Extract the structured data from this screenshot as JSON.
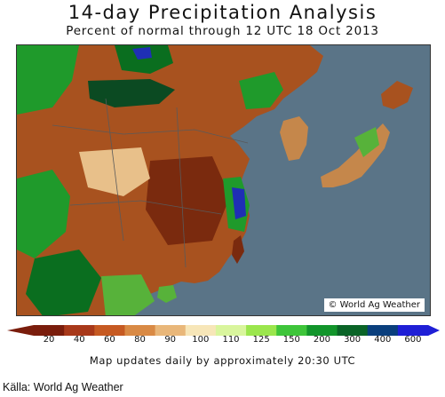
{
  "header": {
    "title": "14-day Precipitation Analysis",
    "subtitle": "Percent of normal through 12 UTC 18 Oct 2013"
  },
  "map": {
    "credit": "© World Ag Weather",
    "colors": {
      "ocean": "#5a7487",
      "dry_dark": "#7a2a0e",
      "dry": "#a8521f",
      "below": "#c5874b",
      "near": "#e8c08a",
      "normal": "#f3dcb0",
      "wet_light": "#57b23a",
      "wet": "#1f9a2b",
      "wet_dark": "#0a6e1f",
      "very_wet": "#0b4a22",
      "extreme": "#1f2fb5",
      "borders": "#5a5a5a"
    }
  },
  "legend": {
    "labels": [
      "20",
      "40",
      "60",
      "80",
      "90",
      "100",
      "110",
      "125",
      "150",
      "200",
      "300",
      "400",
      "600"
    ],
    "colors": [
      "#7a1d0c",
      "#a8391a",
      "#c65a22",
      "#d98a45",
      "#e9b77a",
      "#f7e6b8",
      "#d9f59d",
      "#9be64d",
      "#3ec53a",
      "#12952b",
      "#0a6427",
      "#0a3f7d",
      "#1f1fd6"
    ]
  },
  "footer": {
    "note": "Map updates daily by approximately 20:30 UTC",
    "source": "Källa: World Ag Weather"
  }
}
